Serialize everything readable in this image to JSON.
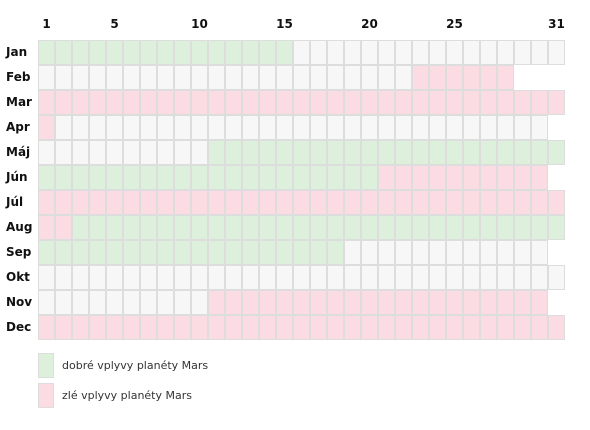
{
  "chart_data": {
    "type": "heatmap",
    "x_tick_labels": [
      "1",
      "5",
      "10",
      "15",
      "20",
      "25",
      "31"
    ],
    "x_ticks": [
      1,
      5,
      10,
      15,
      20,
      25,
      31
    ],
    "months": [
      {
        "label": "Jan",
        "days": 31,
        "good": [
          [
            1,
            15
          ]
        ],
        "bad": []
      },
      {
        "label": "Feb",
        "days": 28,
        "good": [],
        "bad": [
          [
            23,
            28
          ]
        ]
      },
      {
        "label": "Mar",
        "days": 31,
        "good": [],
        "bad": [
          [
            1,
            31
          ]
        ]
      },
      {
        "label": "Apr",
        "days": 30,
        "good": [],
        "bad": [
          [
            1,
            1
          ]
        ]
      },
      {
        "label": "Máj",
        "days": 31,
        "good": [
          [
            11,
            31
          ]
        ],
        "bad": []
      },
      {
        "label": "Jún",
        "days": 30,
        "good": [
          [
            1,
            20
          ]
        ],
        "bad": [
          [
            21,
            30
          ]
        ]
      },
      {
        "label": "Júl",
        "days": 31,
        "good": [],
        "bad": [
          [
            1,
            31
          ]
        ]
      },
      {
        "label": "Aug",
        "days": 31,
        "good": [
          [
            3,
            31
          ]
        ],
        "bad": [
          [
            1,
            2
          ]
        ]
      },
      {
        "label": "Sep",
        "days": 30,
        "good": [
          [
            1,
            18
          ]
        ],
        "bad": []
      },
      {
        "label": "Okt",
        "days": 31,
        "good": [],
        "bad": []
      },
      {
        "label": "Nov",
        "days": 30,
        "good": [],
        "bad": [
          [
            11,
            30
          ]
        ]
      },
      {
        "label": "Dec",
        "days": 31,
        "good": [],
        "bad": [
          [
            1,
            31
          ]
        ]
      }
    ],
    "legend": [
      {
        "key": "good",
        "label": "dobré vplyvy planéty Mars",
        "color": "#dcf0dc"
      },
      {
        "key": "bad",
        "label": "zlé vplyvy planéty Mars",
        "color": "#fbdce2"
      }
    ],
    "neutral_color": "#f7f7f7",
    "grid_color": "#dddddd"
  }
}
